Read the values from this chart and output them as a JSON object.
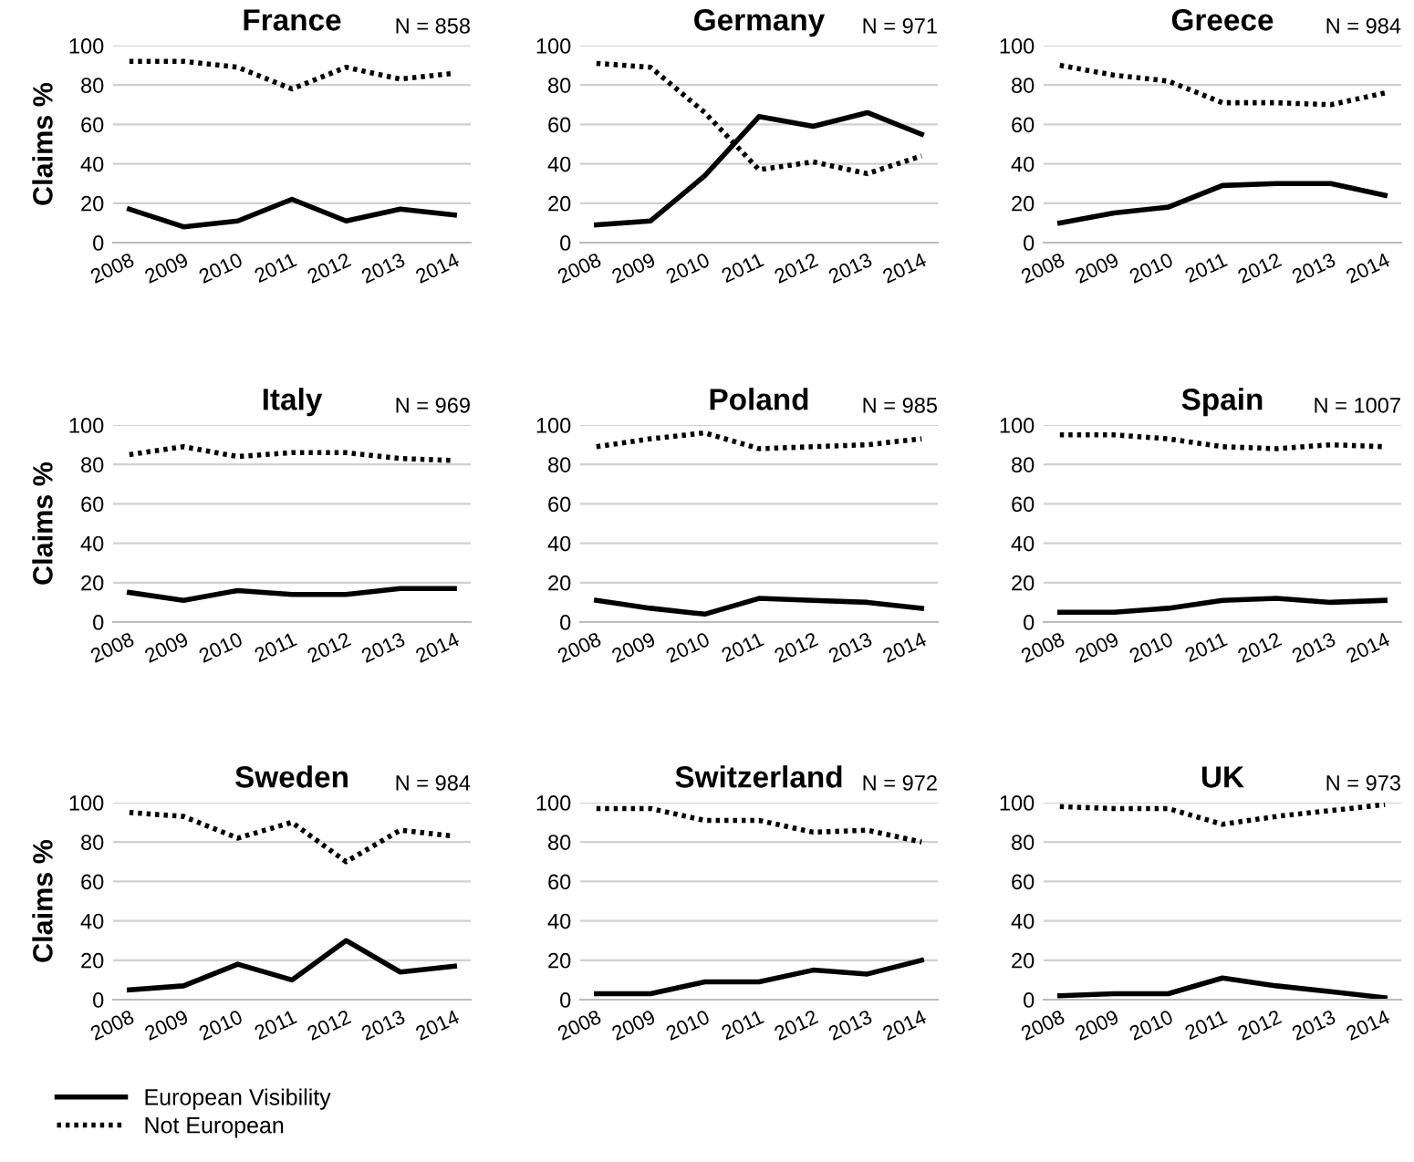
{
  "chart_data": [
    {
      "type": "line",
      "title": "France",
      "ylabel": "Claims %",
      "annotations": [
        "N = 858"
      ],
      "categories": [
        "2008",
        "2009",
        "2010",
        "2011",
        "2012",
        "2013",
        "2014"
      ],
      "ylim": [
        0,
        100
      ],
      "yticks": [
        0,
        20,
        40,
        60,
        80,
        100
      ],
      "grid": "y",
      "legend": "bottom",
      "series": [
        {
          "name": "European Visibility",
          "color": "#000000",
          "line_style": "solid",
          "values": [
            17,
            8,
            11,
            22,
            11,
            17,
            14
          ]
        },
        {
          "name": "Not European",
          "color": "#000000",
          "line_style": "dotted",
          "values": [
            92,
            92,
            89,
            78,
            89,
            83,
            86
          ]
        }
      ]
    },
    {
      "type": "line",
      "title": "Germany",
      "annotations": [
        "N = 971"
      ],
      "categories": [
        "2008",
        "2009",
        "2010",
        "2011",
        "2012",
        "2013",
        "2014"
      ],
      "ylim": [
        0,
        100
      ],
      "yticks": [
        0,
        20,
        40,
        60,
        80,
        100
      ],
      "grid": "y",
      "series": [
        {
          "color": "#000000",
          "line_style": "solid",
          "values": [
            9,
            11,
            34,
            64,
            59,
            66,
            55
          ]
        },
        {
          "color": "#000000",
          "line_style": "dotted",
          "values": [
            91,
            89,
            66,
            37,
            41,
            35,
            44
          ]
        }
      ]
    },
    {
      "type": "line",
      "title": "Greece",
      "annotations": [
        "N = 984"
      ],
      "categories": [
        "2008",
        "2009",
        "2010",
        "2011",
        "2012",
        "2013",
        "2014"
      ],
      "ylim": [
        0,
        100
      ],
      "yticks": [
        0,
        20,
        40,
        60,
        80,
        100
      ],
      "grid": "y",
      "series": [
        {
          "color": "#000000",
          "line_style": "solid",
          "values": [
            10,
            15,
            18,
            29,
            30,
            30,
            24
          ]
        },
        {
          "color": "#000000",
          "line_style": "dotted",
          "values": [
            90,
            85,
            82,
            71,
            71,
            70,
            76
          ]
        }
      ]
    },
    {
      "type": "line",
      "title": "Italy",
      "ylabel": "Claims %",
      "annotations": [
        "N = 969"
      ],
      "categories": [
        "2008",
        "2009",
        "2010",
        "2011",
        "2012",
        "2013",
        "2014"
      ],
      "ylim": [
        0,
        100
      ],
      "yticks": [
        0,
        20,
        40,
        60,
        80,
        100
      ],
      "grid": "y",
      "series": [
        {
          "color": "#000000",
          "line_style": "solid",
          "values": [
            15,
            11,
            16,
            14,
            14,
            17,
            17
          ]
        },
        {
          "color": "#000000",
          "line_style": "dotted",
          "values": [
            85,
            89,
            84,
            86,
            86,
            83,
            82
          ]
        }
      ]
    },
    {
      "type": "line",
      "title": "Poland",
      "annotations": [
        "N = 985"
      ],
      "categories": [
        "2008",
        "2009",
        "2010",
        "2011",
        "2012",
        "2013",
        "2014"
      ],
      "ylim": [
        0,
        100
      ],
      "yticks": [
        0,
        20,
        40,
        60,
        80,
        100
      ],
      "grid": "y",
      "series": [
        {
          "color": "#000000",
          "line_style": "solid",
          "values": [
            11,
            7,
            4,
            12,
            11,
            10,
            7
          ]
        },
        {
          "color": "#000000",
          "line_style": "dotted",
          "values": [
            89,
            93,
            96,
            88,
            89,
            90,
            93
          ]
        }
      ]
    },
    {
      "type": "line",
      "title": "Spain",
      "annotations": [
        "N = 1007"
      ],
      "categories": [
        "2008",
        "2009",
        "2010",
        "2011",
        "2012",
        "2013",
        "2014"
      ],
      "ylim": [
        0,
        100
      ],
      "yticks": [
        0,
        20,
        40,
        60,
        80,
        100
      ],
      "grid": "y",
      "series": [
        {
          "color": "#000000",
          "line_style": "solid",
          "values": [
            5,
            5,
            7,
            11,
            12,
            10,
            11
          ]
        },
        {
          "color": "#000000",
          "line_style": "dotted",
          "values": [
            95,
            95,
            93,
            89,
            88,
            90,
            89
          ]
        }
      ]
    },
    {
      "type": "line",
      "title": "Sweden",
      "ylabel": "Claims %",
      "annotations": [
        "N = 984"
      ],
      "categories": [
        "2008",
        "2009",
        "2010",
        "2011",
        "2012",
        "2013",
        "2014"
      ],
      "ylim": [
        0,
        100
      ],
      "yticks": [
        0,
        20,
        40,
        60,
        80,
        100
      ],
      "grid": "y",
      "series": [
        {
          "color": "#000000",
          "line_style": "solid",
          "values": [
            5,
            7,
            18,
            10,
            30,
            14,
            17
          ]
        },
        {
          "color": "#000000",
          "line_style": "dotted",
          "values": [
            95,
            93,
            82,
            90,
            70,
            86,
            83
          ]
        }
      ]
    },
    {
      "type": "line",
      "title": "Switzerland",
      "annotations": [
        "N = 972"
      ],
      "categories": [
        "2008",
        "2009",
        "2010",
        "2011",
        "2012",
        "2013",
        "2014"
      ],
      "ylim": [
        0,
        100
      ],
      "yticks": [
        0,
        20,
        40,
        60,
        80,
        100
      ],
      "grid": "y",
      "series": [
        {
          "color": "#000000",
          "line_style": "solid",
          "values": [
            3,
            3,
            9,
            9,
            15,
            13,
            20
          ]
        },
        {
          "color": "#000000",
          "line_style": "dotted",
          "values": [
            97,
            97,
            91,
            91,
            85,
            86,
            80
          ]
        }
      ]
    },
    {
      "type": "line",
      "title": "UK",
      "annotations": [
        "N = 973"
      ],
      "categories": [
        "2008",
        "2009",
        "2010",
        "2011",
        "2012",
        "2013",
        "2014"
      ],
      "ylim": [
        0,
        100
      ],
      "yticks": [
        0,
        20,
        40,
        60,
        80,
        100
      ],
      "grid": "y",
      "series": [
        {
          "color": "#000000",
          "line_style": "solid",
          "values": [
            2,
            3,
            3,
            11,
            7,
            4,
            1
          ]
        },
        {
          "color": "#000000",
          "line_style": "dotted",
          "values": [
            98,
            97,
            97,
            89,
            93,
            96,
            99
          ]
        }
      ]
    }
  ]
}
